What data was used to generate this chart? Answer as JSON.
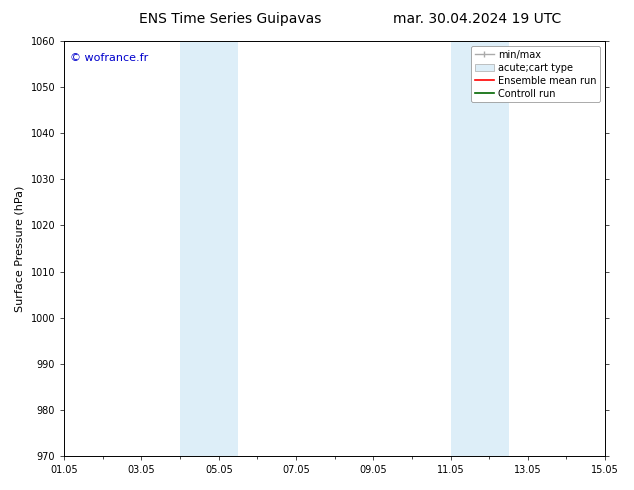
{
  "title_left": "ENS Time Series Guipavas",
  "title_right": "mar. 30.04.2024 19 UTC",
  "ylabel": "Surface Pressure (hPa)",
  "ylim": [
    970,
    1060
  ],
  "yticks": [
    970,
    980,
    990,
    1000,
    1010,
    1020,
    1030,
    1040,
    1050,
    1060
  ],
  "xlim_start": 0,
  "xlim_end": 14,
  "xtick_labels": [
    "01.05",
    "03.05",
    "05.05",
    "07.05",
    "09.05",
    "11.05",
    "13.05",
    "15.05"
  ],
  "xtick_positions": [
    0,
    2,
    4,
    6,
    8,
    10,
    12,
    14
  ],
  "shaded_regions": [
    {
      "xmin": 3.0,
      "xmax": 3.5
    },
    {
      "xmin": 3.5,
      "xmax": 4.5
    },
    {
      "xmin": 10.0,
      "xmax": 10.5
    },
    {
      "xmin": 10.5,
      "xmax": 11.5
    }
  ],
  "shade_color": "#ddeef8",
  "watermark": "© wofrance.fr",
  "watermark_color": "#0000cc",
  "background_color": "#ffffff",
  "title_fontsize": 10,
  "axis_fontsize": 8,
  "tick_fontsize": 7,
  "legend_fontsize": 7
}
